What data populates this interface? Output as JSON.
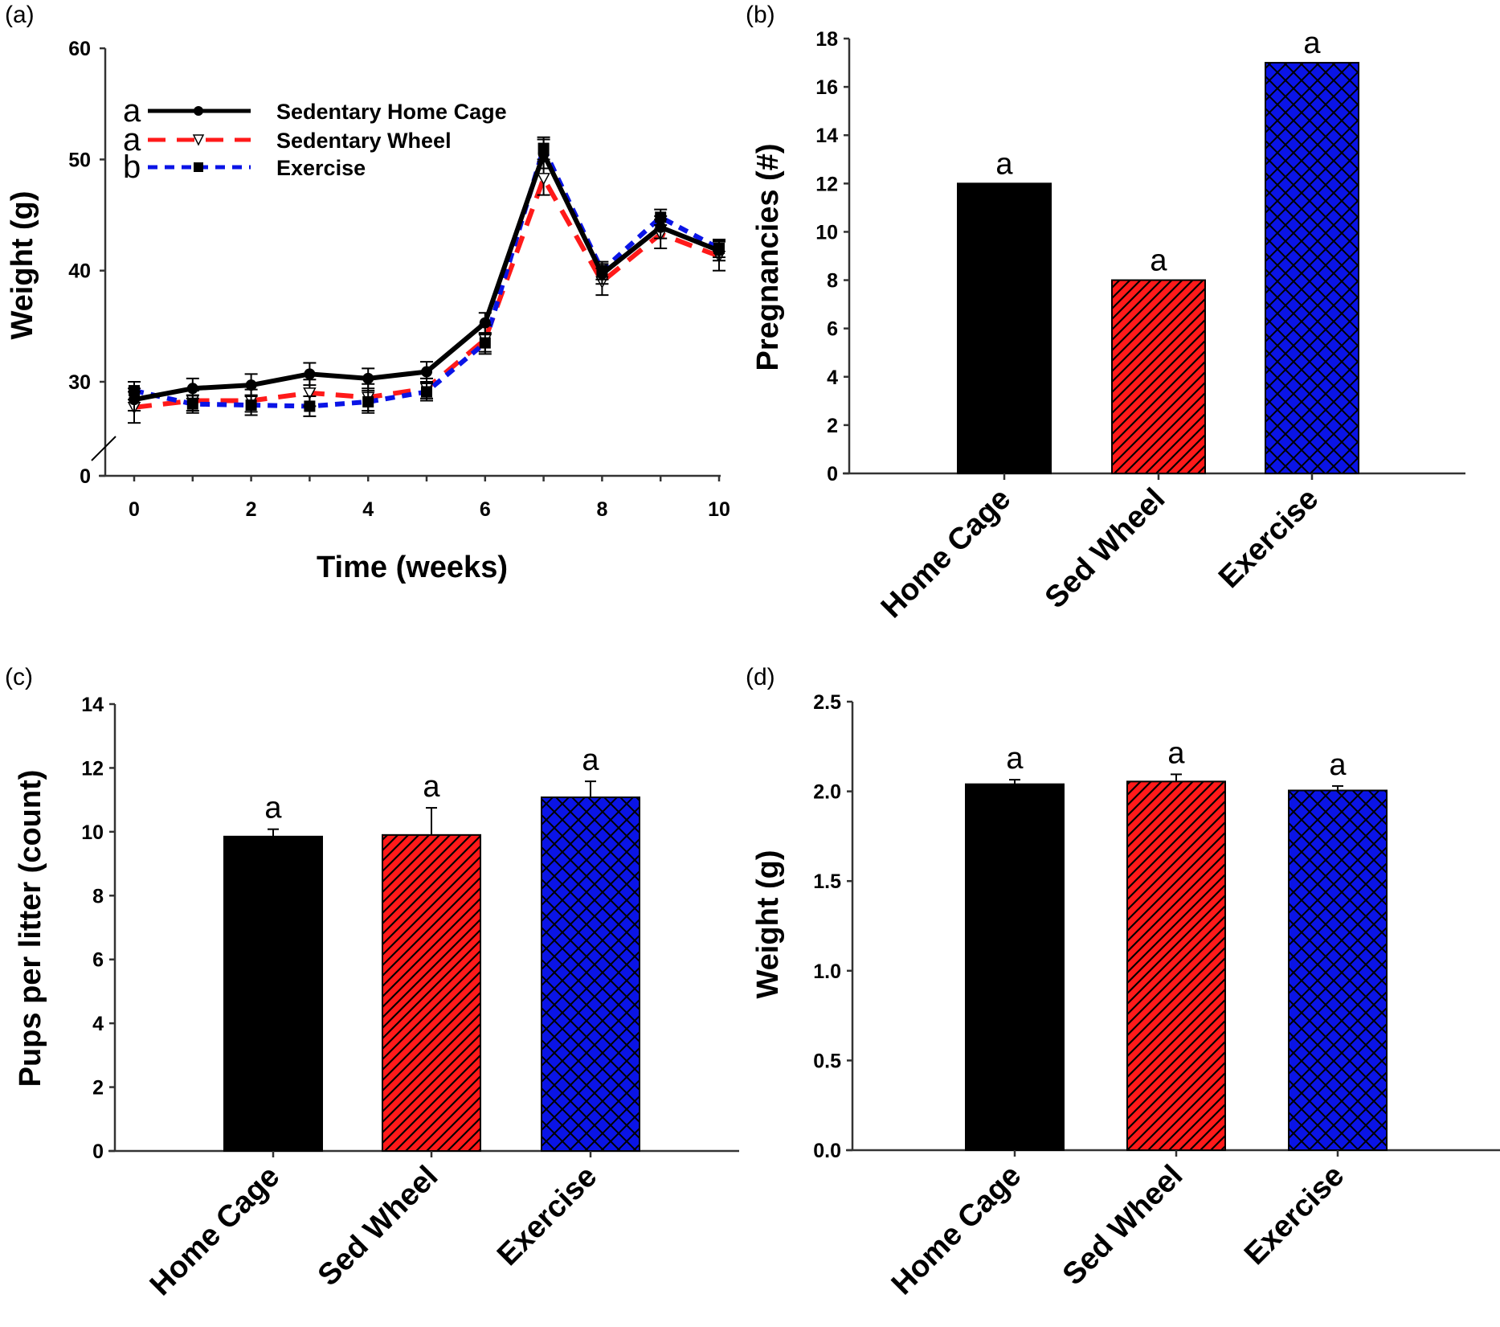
{
  "chart_data": [
    {
      "panel": "(a)",
      "type": "line",
      "title": "",
      "xlabel": "Time (weeks)",
      "ylabel": "Weight (g)",
      "xlim": [
        0,
        10
      ],
      "ylim": [
        0,
        60
      ],
      "axis_break": "between 0 and 30",
      "xticks": [
        "0",
        "2",
        "4",
        "6",
        "8",
        "10"
      ],
      "yticks": [
        "0",
        "30",
        "40",
        "50",
        "60"
      ],
      "x": [
        0,
        1,
        2,
        3,
        4,
        5,
        6,
        7,
        8,
        9,
        10
      ],
      "legend_position": "top-left",
      "series": [
        {
          "name": "Sedentary Home Cage",
          "sig": "a",
          "color": "#000000",
          "style": "solid",
          "marker": "circle",
          "values": [
            28.4,
            29.4,
            29.7,
            30.7,
            30.3,
            30.9,
            35.3,
            50.5,
            39.7,
            43.9,
            41.8
          ],
          "errors": [
            1.0,
            0.9,
            1.0,
            1.0,
            0.9,
            0.9,
            0.9,
            1.3,
            0.9,
            1.0,
            0.9
          ]
        },
        {
          "name": "Sedentary Wheel",
          "sig": "a",
          "color": "#ff1a1a",
          "style": "dashed",
          "marker": "triangle-down-open",
          "values": [
            27.7,
            28.3,
            28.3,
            29.0,
            28.6,
            29.4,
            33.8,
            48.3,
            39.0,
            43.3,
            41.3
          ],
          "errors": [
            1.4,
            0.9,
            1.0,
            1.2,
            1.2,
            0.9,
            1.3,
            1.5,
            1.2,
            1.3,
            1.3
          ]
        },
        {
          "name": "Exercise",
          "sig": "b",
          "color": "#0a14e6",
          "style": "dotted",
          "marker": "square",
          "values": [
            29.2,
            28.0,
            27.9,
            27.8,
            28.2,
            29.1,
            33.5,
            51.0,
            40.0,
            44.8,
            42.0
          ],
          "errors": [
            0.8,
            0.8,
            0.9,
            0.9,
            1.0,
            0.8,
            0.8,
            1.0,
            0.8,
            0.7,
            0.8
          ]
        }
      ]
    },
    {
      "panel": "(b)",
      "type": "bar",
      "title": "",
      "xlabel": "",
      "ylabel": "Pregnancies (#)",
      "ylim": [
        0,
        18
      ],
      "yticks": [
        "0",
        "2",
        "4",
        "6",
        "8",
        "10",
        "12",
        "14",
        "16",
        "18"
      ],
      "categories": [
        "Home Cage",
        "Sed Wheel",
        "Exercise"
      ],
      "values": [
        12,
        8,
        17
      ],
      "errors": [
        null,
        null,
        null
      ],
      "sig": [
        "a",
        "a",
        "a"
      ],
      "colors": [
        "#000000",
        "#ff1a1a",
        "#0a14e6"
      ],
      "patterns": [
        "solid",
        "diagonal",
        "crosshatch"
      ]
    },
    {
      "panel": "(c)",
      "type": "bar",
      "title": "",
      "xlabel": "",
      "ylabel": "Pups per litter (count)",
      "ylim": [
        0,
        14
      ],
      "yticks": [
        "0",
        "2",
        "4",
        "6",
        "8",
        "10",
        "12",
        "14"
      ],
      "categories": [
        "Home Cage",
        "Sed Wheel",
        "Exercise"
      ],
      "values": [
        9.85,
        9.9,
        11.08
      ],
      "errors": [
        0.23,
        0.85,
        0.5
      ],
      "sig": [
        "a",
        "a",
        "a"
      ],
      "colors": [
        "#000000",
        "#ff1a1a",
        "#0a14e6"
      ],
      "patterns": [
        "solid",
        "diagonal",
        "crosshatch"
      ]
    },
    {
      "panel": "(d)",
      "type": "bar",
      "title": "",
      "xlabel": "",
      "ylabel": "Weight (g)",
      "ylim": [
        0,
        2.5
      ],
      "yticks": [
        "0.0",
        "0.5",
        "1.0",
        "1.5",
        "2.0",
        "2.5"
      ],
      "categories": [
        "Home Cage",
        "Sed Wheel",
        "Exercise"
      ],
      "values": [
        2.04,
        2.055,
        2.005
      ],
      "errors": [
        0.025,
        0.04,
        0.025
      ],
      "sig": [
        "a",
        "a",
        "a"
      ],
      "colors": [
        "#000000",
        "#ff1a1a",
        "#0a14e6"
      ],
      "patterns": [
        "solid",
        "diagonal",
        "crosshatch"
      ]
    }
  ]
}
